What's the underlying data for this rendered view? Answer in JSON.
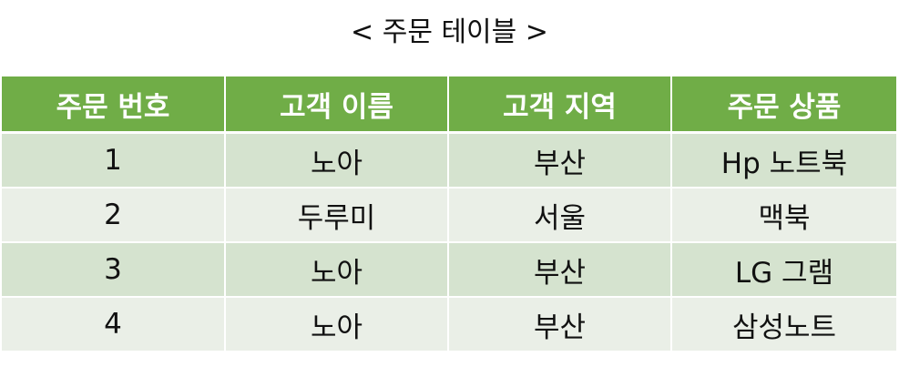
{
  "title": "< 주문 테이블 >",
  "table": {
    "headers": [
      "주문 번호",
      "고객 이름",
      "고객 지역",
      "주문 상품"
    ],
    "rows": [
      [
        "1",
        "노아",
        "부산",
        "Hp 노트북"
      ],
      [
        "2",
        "두루미",
        "서울",
        "맥북"
      ],
      [
        "3",
        "노아",
        "부산",
        "LG 그램"
      ],
      [
        "4",
        "노아",
        "부산",
        "삼성노트"
      ]
    ]
  },
  "colors": {
    "header_background": "#70ad47",
    "header_text": "#ffffff",
    "row_odd_background": "#d5e3cf",
    "row_even_background": "#eaefe7"
  }
}
